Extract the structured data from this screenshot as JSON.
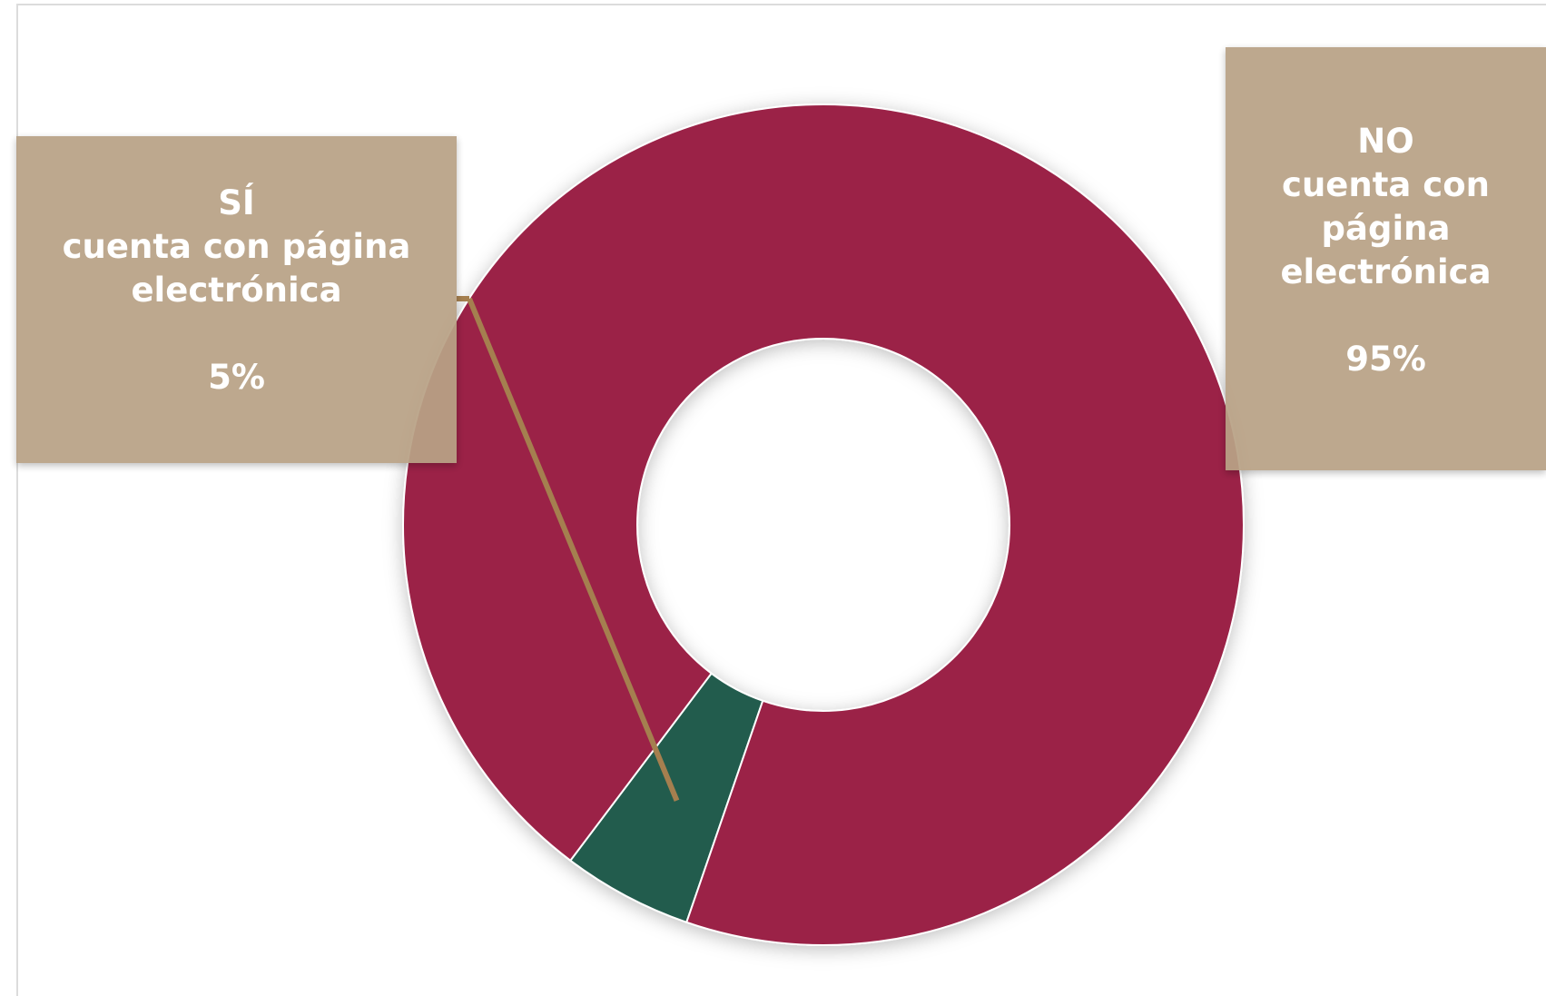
{
  "chart_data": {
    "type": "pie",
    "style": "donut",
    "slices": [
      {
        "category": "SÍ\ncuenta con página electrónica",
        "value": 5,
        "label": "5%",
        "color": "#235b4e"
      },
      {
        "category": "NO\ncuenta con\npágina\nelectrónica",
        "value": 95,
        "label": "95%",
        "color": "#9b2247"
      }
    ],
    "label_box_color": "#b9a286",
    "leader_line_color": "#a57f4f"
  }
}
